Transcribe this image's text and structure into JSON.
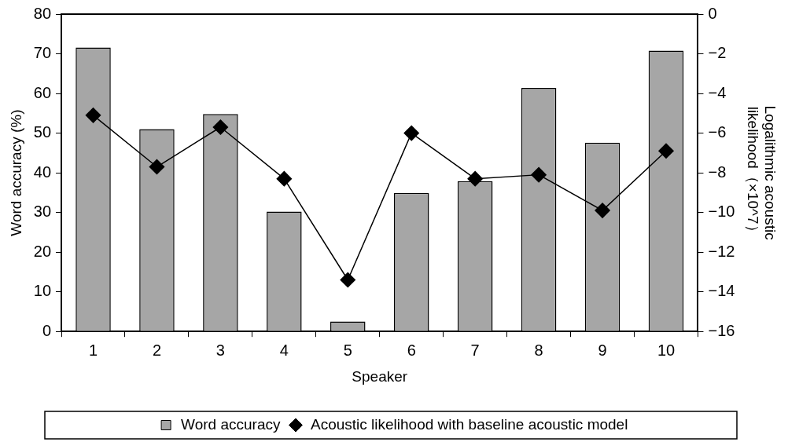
{
  "chart_data": {
    "type": "bar",
    "categories": [
      "1",
      "2",
      "3",
      "4",
      "5",
      "6",
      "7",
      "8",
      "9",
      "10"
    ],
    "series": [
      {
        "name": "Word accuracy",
        "color": "#a6a6a6",
        "values": [
          71.6,
          51.0,
          54.8,
          30.2,
          2.5,
          34.9,
          37.9,
          61.4,
          47.6,
          70.8
        ]
      },
      {
        "name": "Acoustic likelihood with baseline acoustic model",
        "type": "line",
        "axis": "y2",
        "color": "#000000",
        "values": [
          -5.1,
          -7.7,
          -5.7,
          -8.3,
          -13.4,
          -6.0,
          -8.3,
          -8.1,
          -9.9,
          -6.9
        ]
      }
    ],
    "xlabel": "Speaker",
    "ylabel": "Word accuracy (%)",
    "y2label": "Logalithmic acoustic likelihood（×10^7）",
    "ylim": [
      0,
      80
    ],
    "yticks": [
      0,
      10,
      20,
      30,
      40,
      50,
      60,
      70,
      80
    ],
    "y2lim": [
      -16,
      0
    ],
    "y2ticks": [
      {
        "value": -16,
        "label": "−16"
      },
      {
        "value": -14,
        "label": "−14"
      },
      {
        "value": -12,
        "label": "−12"
      },
      {
        "value": -10,
        "label": "−10"
      },
      {
        "value": -8,
        "label": "−8"
      },
      {
        "value": -6,
        "label": "−6"
      },
      {
        "value": -4,
        "label": "−4"
      },
      {
        "value": -2,
        "label": "−2"
      },
      {
        "value": 0,
        "label": "0"
      }
    ],
    "legend": "bottom",
    "marker": "diamond",
    "line_style": "solid"
  }
}
